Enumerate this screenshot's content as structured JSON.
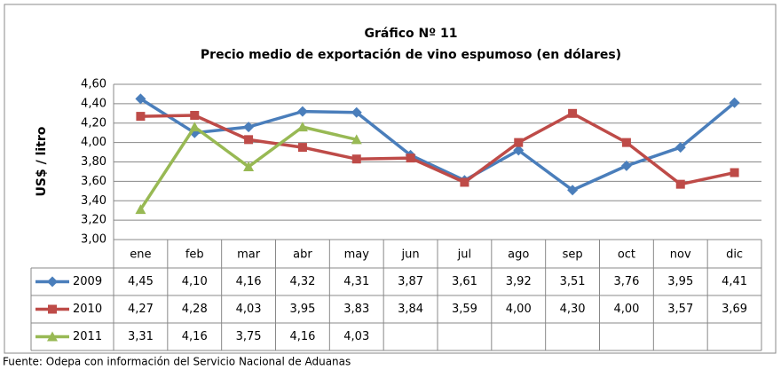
{
  "chart_data": {
    "type": "line",
    "title": "Gráfico Nº 11",
    "subtitle": "Precio medio de exportación de vino espumoso (en dólares)",
    "y_label": "US$ / litro",
    "categories": [
      "ene",
      "feb",
      "mar",
      "abr",
      "may",
      "jun",
      "jul",
      "ago",
      "sep",
      "oct",
      "nov",
      "dic"
    ],
    "series": [
      {
        "name": "2009",
        "color": "#4a7ebb",
        "marker": "diamond",
        "values": [
          4.45,
          4.1,
          4.16,
          4.32,
          4.31,
          3.87,
          3.61,
          3.92,
          3.51,
          3.76,
          3.95,
          4.41
        ],
        "value_labels": [
          "4,45",
          "4,10",
          "4,16",
          "4,32",
          "4,31",
          "3,87",
          "3,61",
          "3,92",
          "3,51",
          "3,76",
          "3,95",
          "4,41"
        ]
      },
      {
        "name": "2010",
        "color": "#be4b48",
        "marker": "square",
        "values": [
          4.27,
          4.28,
          4.03,
          3.95,
          3.83,
          3.84,
          3.59,
          4.0,
          4.3,
          4.0,
          3.57,
          3.69
        ],
        "value_labels": [
          "4,27",
          "4,28",
          "4,03",
          "3,95",
          "3,83",
          "3,84",
          "3,59",
          "4,00",
          "4,30",
          "4,00",
          "3,57",
          "3,69"
        ]
      },
      {
        "name": "2011",
        "color": "#98b954",
        "marker": "triangle",
        "values": [
          3.31,
          4.16,
          3.75,
          4.16,
          4.03,
          null,
          null,
          null,
          null,
          null,
          null,
          null
        ],
        "value_labels": [
          "3,31",
          "4,16",
          "3,75",
          "4,16",
          "4,03",
          null,
          null,
          null,
          null,
          null,
          null,
          null
        ]
      }
    ],
    "ylim": [
      3.0,
      4.6
    ],
    "yticks": [
      {
        "value": 3.0,
        "label": "3,00"
      },
      {
        "value": 3.2,
        "label": "3,20"
      },
      {
        "value": 3.4,
        "label": "3,40"
      },
      {
        "value": 3.6,
        "label": "3,60"
      },
      {
        "value": 3.8,
        "label": "3,80"
      },
      {
        "value": 4.0,
        "label": "4,00"
      },
      {
        "value": 4.2,
        "label": "4,20"
      },
      {
        "value": 4.4,
        "label": "4,40"
      },
      {
        "value": 4.6,
        "label": "4,60"
      }
    ],
    "grid": true,
    "source": "Fuente: Odepa con información del Servicio Nacional de Aduanas"
  }
}
